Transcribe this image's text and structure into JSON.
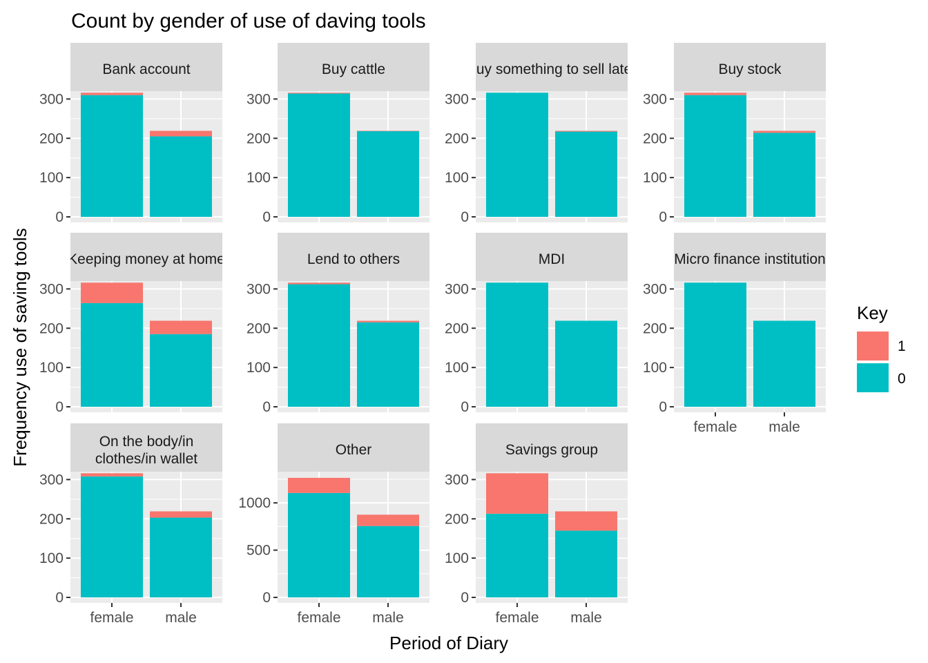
{
  "chart_data": {
    "type": "bar",
    "stacked": true,
    "title": "Count by gender of use of daving tools",
    "xlabel": "Period of Diary",
    "ylabel": "Frequency use of saving tools",
    "categories": [
      "female",
      "male"
    ],
    "legend": {
      "title": "Key",
      "position": "right",
      "entries": [
        {
          "label": "1",
          "color": "#F8766D"
        },
        {
          "label": "0",
          "color": "#00BFC4"
        }
      ]
    },
    "grid": true,
    "facets": [
      {
        "label": "Bank account",
        "ylim": [
          0,
          320
        ],
        "yticks": [
          0,
          100,
          200,
          300
        ],
        "series": [
          {
            "name": "0",
            "values": [
              310,
              205
            ]
          },
          {
            "name": "1",
            "values": [
              6,
              14
            ]
          }
        ]
      },
      {
        "label": "Buy cattle",
        "ylim": [
          0,
          320
        ],
        "yticks": [
          0,
          100,
          200,
          300
        ],
        "series": [
          {
            "name": "0",
            "values": [
              314,
              218
            ]
          },
          {
            "name": "1",
            "values": [
              2,
              1
            ]
          }
        ]
      },
      {
        "label": "Buy something to sell later",
        "ylim": [
          0,
          320
        ],
        "yticks": [
          0,
          100,
          200,
          300
        ],
        "series": [
          {
            "name": "0",
            "values": [
              316,
              217
            ]
          },
          {
            "name": "1",
            "values": [
              0,
              2
            ]
          }
        ]
      },
      {
        "label": "Buy stock",
        "ylim": [
          0,
          320
        ],
        "yticks": [
          0,
          100,
          200,
          300
        ],
        "series": [
          {
            "name": "0",
            "values": [
              310,
              214
            ]
          },
          {
            "name": "1",
            "values": [
              6,
              5
            ]
          }
        ]
      },
      {
        "label": "Keeping money at home",
        "ylim": [
          0,
          320
        ],
        "yticks": [
          0,
          100,
          200,
          300
        ],
        "series": [
          {
            "name": "0",
            "values": [
              264,
              185
            ]
          },
          {
            "name": "1",
            "values": [
              52,
              34
            ]
          }
        ]
      },
      {
        "label": "Lend to others",
        "ylim": [
          0,
          320
        ],
        "yticks": [
          0,
          100,
          200,
          300
        ],
        "series": [
          {
            "name": "0",
            "values": [
              312,
              215
            ]
          },
          {
            "name": "1",
            "values": [
              4,
              4
            ]
          }
        ]
      },
      {
        "label": "MDI",
        "ylim": [
          0,
          320
        ],
        "yticks": [
          0,
          100,
          200,
          300
        ],
        "series": [
          {
            "name": "0",
            "values": [
              316,
              219
            ]
          },
          {
            "name": "1",
            "values": [
              0,
              0
            ]
          }
        ]
      },
      {
        "label": "Micro finance institution",
        "ylim": [
          0,
          320
        ],
        "yticks": [
          0,
          100,
          200,
          300
        ],
        "series": [
          {
            "name": "0",
            "values": [
              316,
              219
            ]
          },
          {
            "name": "1",
            "values": [
              0,
              0
            ]
          }
        ]
      },
      {
        "label": "On the body/in\nclothes/in wallet",
        "ylim": [
          0,
          320
        ],
        "yticks": [
          0,
          100,
          200,
          300
        ],
        "series": [
          {
            "name": "0",
            "values": [
              308,
              203
            ]
          },
          {
            "name": "1",
            "values": [
              8,
              16
            ]
          }
        ]
      },
      {
        "label": "Other",
        "ylim": [
          0,
          1330
        ],
        "yticks": [
          0,
          500,
          1000
        ],
        "series": [
          {
            "name": "0",
            "values": [
              1105,
              755
            ]
          },
          {
            "name": "1",
            "values": [
              160,
              120
            ]
          }
        ]
      },
      {
        "label": "Savings group",
        "ylim": [
          0,
          320
        ],
        "yticks": [
          0,
          100,
          200,
          300
        ],
        "series": [
          {
            "name": "0",
            "values": [
              213,
              170
            ]
          },
          {
            "name": "1",
            "values": [
              103,
              49
            ]
          }
        ]
      }
    ]
  }
}
